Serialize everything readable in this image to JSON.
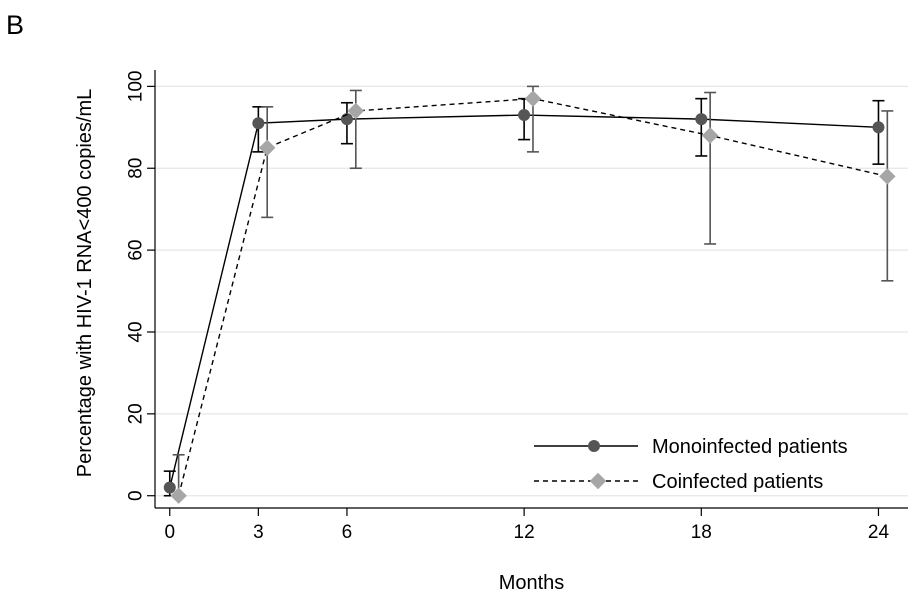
{
  "panel_label": "B",
  "chart_data": {
    "type": "line",
    "title": "",
    "xlabel": "Months",
    "ylabel": "Percentage with HIV-1 RNA<400 copies/mL",
    "x_ticks": [
      0,
      3,
      6,
      12,
      18,
      24
    ],
    "y_ticks": [
      0,
      20,
      40,
      60,
      80,
      100
    ],
    "xlim": [
      -0.5,
      25
    ],
    "ylim": [
      -3,
      104
    ],
    "grid": "horizontal",
    "legend_position": "bottom-right",
    "series": [
      {
        "name": "Monoinfected patients",
        "line_style": "solid",
        "marker": "circle",
        "color": "#555555",
        "error_color": "#000000",
        "x": [
          0,
          3,
          6,
          12,
          18,
          24
        ],
        "y": [
          2,
          91,
          92,
          93,
          92,
          90
        ],
        "lower": [
          0,
          84,
          86,
          87,
          83,
          81
        ],
        "upper": [
          6,
          95,
          96,
          97,
          97,
          96.5
        ]
      },
      {
        "name": "Coinfected patients",
        "line_style": "dashed",
        "marker": "diamond",
        "color": "#a6a6a6",
        "error_color": "#555555",
        "x": [
          0,
          3,
          6,
          12,
          18,
          24
        ],
        "y": [
          0,
          85,
          94,
          97,
          88,
          78
        ],
        "lower": [
          0,
          68,
          80,
          84,
          61.5,
          52.5
        ],
        "upper": [
          10,
          95,
          99,
          100,
          98.5,
          94
        ]
      }
    ]
  }
}
